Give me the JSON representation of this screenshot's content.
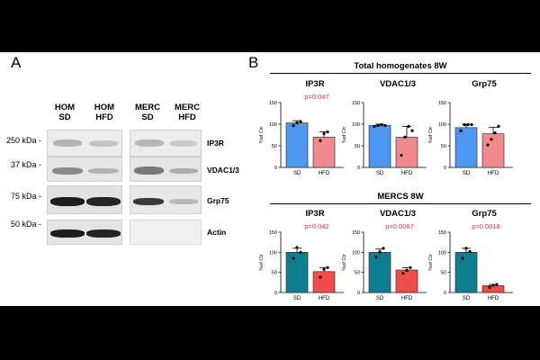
{
  "panel_a": {
    "letter": "A",
    "lanes": [
      {
        "line1": "HOM",
        "line2": "SD"
      },
      {
        "line1": "HOM",
        "line2": "HFD"
      },
      {
        "line1": "MERC",
        "line2": "SD"
      },
      {
        "line1": "MERC",
        "line2": "HFD"
      }
    ],
    "markers": [
      "250 kDa -",
      "37 kDa -",
      "75 kDa -",
      "50 kDa -"
    ],
    "proteins": [
      "IP3R",
      "VDAC1/3",
      "Grp75",
      "Actin"
    ]
  },
  "panel_b": {
    "letter": "B",
    "top_title": "Total homogenates 8W",
    "bottom_title": "MERCS 8W",
    "ylabel": "%of Ctr"
  },
  "chart_data": [
    {
      "type": "bar",
      "group": "Total homogenates 8W",
      "title": "IP3R",
      "categories": [
        "SD",
        "HFD"
      ],
      "values": [
        103,
        70
      ],
      "errors": [
        5,
        12
      ],
      "points": [
        [
          97,
          103,
          106
        ],
        [
          62,
          78,
          82
        ]
      ],
      "p_value": "p=0.047",
      "ylabel": "%of Ctr",
      "ylim": [
        0,
        150
      ],
      "yticks": [
        0,
        50,
        100,
        150
      ],
      "colors": [
        "#4d97f2",
        "#f08a8e"
      ]
    },
    {
      "type": "bar",
      "group": "Total homogenates 8W",
      "title": "VDAC1/3",
      "categories": [
        "SD",
        "HFD"
      ],
      "values": [
        97,
        70
      ],
      "errors": [
        3,
        25
      ],
      "points": [
        [
          95,
          97,
          99,
          97
        ],
        [
          28,
          70,
          95,
          85
        ]
      ],
      "p_value": "",
      "ylabel": "%of Ctr",
      "ylim": [
        0,
        150
      ],
      "yticks": [
        0,
        50,
        100,
        150
      ],
      "colors": [
        "#4d97f2",
        "#f08a8e"
      ]
    },
    {
      "type": "bar",
      "group": "Total homogenates 8W",
      "title": "Grp75",
      "categories": [
        "SD",
        "HFD"
      ],
      "values": [
        92,
        78
      ],
      "errors": [
        8,
        15
      ],
      "points": [
        [
          85,
          99,
          99,
          99
        ],
        [
          52,
          65,
          80,
          95
        ]
      ],
      "p_value": "",
      "ylabel": "%of Ctr",
      "ylim": [
        0,
        150
      ],
      "yticks": [
        0,
        50,
        100,
        150
      ],
      "colors": [
        "#4d97f2",
        "#f08a8e"
      ]
    },
    {
      "type": "bar",
      "group": "MERCS 8W",
      "title": "IP3R",
      "categories": [
        "SD",
        "HFD"
      ],
      "values": [
        100,
        52
      ],
      "errors": [
        10,
        10
      ],
      "points": [
        [
          85,
          112,
          100
        ],
        [
          38,
          58,
          62
        ]
      ],
      "p_value": "p=0.042",
      "ylabel": "%of Ctr",
      "ylim": [
        0,
        150
      ],
      "yticks": [
        0,
        50,
        100,
        150
      ],
      "colors": [
        "#0f7f8f",
        "#f04c4c"
      ]
    },
    {
      "type": "bar",
      "group": "MERCS 8W",
      "title": "VDAC1/3",
      "categories": [
        "SD",
        "HFD"
      ],
      "values": [
        100,
        56
      ],
      "errors": [
        8,
        6
      ],
      "points": [
        [
          88,
          101,
          110
        ],
        [
          48,
          55,
          62
        ]
      ],
      "p_value": "p=0.0087",
      "ylabel": "%of Ctr",
      "ylim": [
        0,
        150
      ],
      "yticks": [
        0,
        50,
        100,
        150
      ],
      "colors": [
        "#0f7f8f",
        "#f04c4c"
      ]
    },
    {
      "type": "bar",
      "group": "MERCS 8W",
      "title": "Grp75",
      "categories": [
        "SD",
        "HFD"
      ],
      "values": [
        100,
        17
      ],
      "errors": [
        10,
        3
      ],
      "points": [
        [
          85,
          110,
          102
        ],
        [
          13,
          18,
          20
        ]
      ],
      "p_value": "p=0.0018",
      "ylabel": "%of Ctr",
      "ylim": [
        0,
        150
      ],
      "yticks": [
        0,
        50,
        100,
        150
      ],
      "colors": [
        "#0f7f8f",
        "#f04c4c"
      ]
    }
  ]
}
